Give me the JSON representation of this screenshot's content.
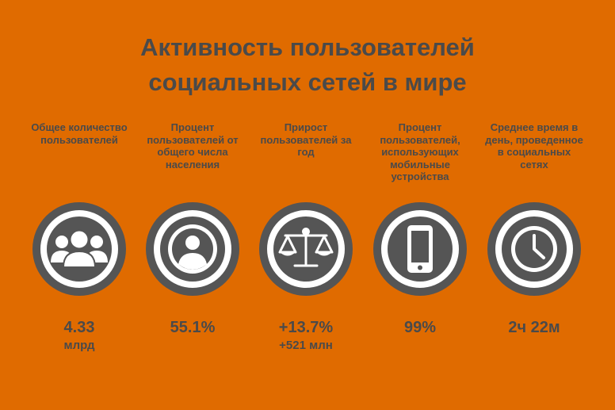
{
  "title": {
    "line1": "Активность пользователей",
    "line2": "социальных сетей в мире"
  },
  "colors": {
    "background": "#E06B00",
    "dark": "#4A4A4A",
    "ring": "#555555",
    "inner": "#FFFFFF"
  },
  "stats": [
    {
      "label": "Общее количество пользователей",
      "value": "4.33",
      "sub": "млрд",
      "icon": "users-icon"
    },
    {
      "label": "Процент пользователей от общего числа населения",
      "value": "55.1%",
      "sub": "",
      "icon": "user-icon"
    },
    {
      "label": "Прирост пользователей за год",
      "value": "+13.7%",
      "sub": "+521 млн",
      "icon": "scales-icon"
    },
    {
      "label": "Процент пользователей, использующих мобильные устройства",
      "value": "99%",
      "sub": "",
      "icon": "smartphone-icon"
    },
    {
      "label": "Среднее время в день, проведенное в социальных сетях",
      "value": "2ч 22м",
      "sub": "",
      "icon": "clock-icon"
    }
  ]
}
